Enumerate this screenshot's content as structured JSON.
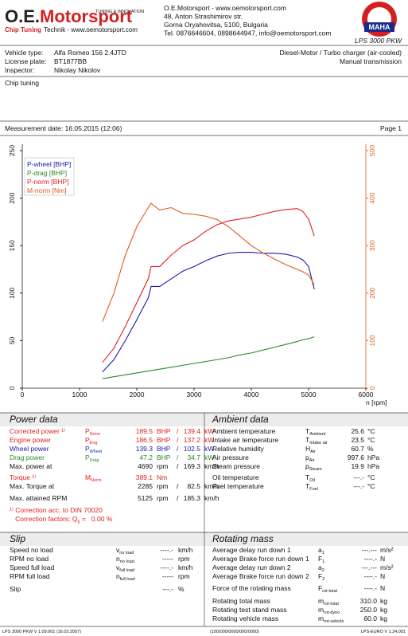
{
  "header": {
    "logo_a": "O.E.",
    "logo_b": "Motorsport",
    "logo_tag": "TUNING & INNOVATION",
    "logo_sub_bold": "Chip Tuning",
    "logo_sub": "Technik - www.oemotorsport.com",
    "address": [
      "O.E.Motorsport - www.oemotorsport.com",
      "48, Anton Strashimirov str.",
      "Gorna Oryahovitsa, 5100, Bulgaria",
      "Tel. 0876646604, 0898644947, info@oemotorsport.com"
    ],
    "badge": "MAHA",
    "product": "LPS 3000 PKW"
  },
  "vehicle": {
    "rows": [
      [
        "Vehicle type:",
        "Alfa Romeo 156 2.4JTD"
      ],
      [
        "License plate:",
        "BT1877BB"
      ],
      [
        "Inspector:",
        "Nikolay Nikolov"
      ]
    ],
    "right": [
      "Diesel-Motor / Turbo charger (air-cooled)",
      "Manual transmission"
    ]
  },
  "notes": "Chip tuning",
  "measurement": "Measurement date: 16.05.2015 (12:06)",
  "page": "Page 1",
  "chart_data": {
    "type": "line",
    "xlabel": "n [rpm]",
    "xlim": [
      0,
      6000
    ],
    "xticks": [
      0,
      1000,
      2000,
      3000,
      4000,
      5000,
      6000
    ],
    "ylim": [
      0,
      250
    ],
    "yticks": [
      0,
      50,
      100,
      150,
      200,
      250
    ],
    "y2lim": [
      0,
      500
    ],
    "y2ticks": [
      0,
      100,
      200,
      300,
      400,
      500
    ],
    "y2color": "#e06020",
    "grid": false,
    "legend": "upper left",
    "x": [
      1400,
      1600,
      1800,
      2000,
      2200,
      2250,
      2400,
      2600,
      2800,
      3000,
      3200,
      3400,
      3600,
      3800,
      4000,
      4200,
      4400,
      4600,
      4800,
      4900,
      5000,
      5100
    ],
    "series": [
      {
        "name": "P-wheel [BHP]",
        "color": "#1a1ab4",
        "values": [
          17,
          30,
          50,
          72,
          95,
          107,
          107,
          115,
          123,
          128,
          134,
          139,
          142,
          143,
          143,
          142,
          142,
          141,
          138,
          135,
          128,
          104
        ]
      },
      {
        "name": "P-drag [BHP]",
        "color": "#2a8a2a",
        "values": [
          10,
          12,
          14,
          16,
          18,
          18.5,
          20,
          22,
          24,
          26,
          28,
          30,
          32,
          35,
          37,
          40,
          43,
          46,
          49,
          51,
          52,
          54
        ]
      },
      {
        "name": "P-norm [BHP]",
        "color": "#e02020",
        "values": [
          27,
          42,
          65,
          90,
          115,
          128,
          128,
          140,
          150,
          156,
          165,
          172,
          176,
          178,
          180,
          183,
          186,
          188,
          189,
          186,
          178,
          160
        ]
      },
      {
        "name": "M-norm [Nm]",
        "color": "#e05a20",
        "axis": "y2",
        "values": [
          140,
          200,
          280,
          340,
          380,
          389,
          375,
          380,
          368,
          366,
          362,
          355,
          340,
          320,
          300,
          285,
          272,
          260,
          250,
          245,
          238,
          218
        ]
      }
    ]
  },
  "power_data": {
    "title": "Power data",
    "rows": [
      {
        "label": "Corrected power ¹⁾",
        "sym": "P",
        "sub": "Norm",
        "v1": "189.5",
        "u1": "BHP",
        "sep": "/",
        "v2": "139.4",
        "u2": "kW",
        "color": "#e02020"
      },
      {
        "label": "Engine power",
        "sym": "P",
        "sub": "Eng",
        "v1": "186.5",
        "u1": "BHP",
        "sep": "/",
        "v2": "137.2",
        "u2": "kW",
        "color": "#e02020"
      },
      {
        "label": "Wheel power",
        "sym": "P",
        "sub": "Wheel",
        "v1": "139.3",
        "u1": "BHP",
        "sep": "/",
        "v2": "102.5",
        "u2": "kW",
        "color": "#1a1ab4"
      },
      {
        "label": "Drag power",
        "sym": "P",
        "sub": "Drag",
        "v1": "47.2",
        "u1": "BHP",
        "sep": "/",
        "v2": "34.7",
        "u2": "kW",
        "color": "#2a8a2a"
      },
      {
        "label": "Max. power at",
        "v1": "4690",
        "u1": "rpm",
        "sep": "/",
        "v2": "169.3",
        "u2": "km/h"
      },
      {
        "label": "Torque ¹⁾",
        "sym": "M",
        "sub": "Norm",
        "v1": "389.1",
        "u1": "Nm",
        "color": "#e02020"
      },
      {
        "label": "Max. Torque at",
        "v1": "2285",
        "u1": "rpm",
        "sep": "/",
        "v2": "82.5",
        "u2": "km/h"
      },
      {
        "label": "Max. attained RPM",
        "v1": "5125",
        "u1": "rpm",
        "sep": "/",
        "v2": "185.3",
        "u2": "km/h"
      },
      {
        "label": "¹⁾ Correction acc. to DIN 70020",
        "color": "#e02020"
      },
      {
        "label": "   Correction factors: ",
        "sym": "Q",
        "sub": "y",
        "v1": " =   0.00 %",
        "color": "#e02020"
      }
    ]
  },
  "ambient_data": {
    "title": "Ambient data",
    "rows": [
      {
        "label": "Ambient temperature",
        "sym": "T",
        "sub": "Ambient",
        "v1": "25.6",
        "u1": "°C"
      },
      {
        "label": "Intake air temperature",
        "sym": "T",
        "sub": "Intake air",
        "v1": "23.5",
        "u1": "°C"
      },
      {
        "label": "Relative humidity",
        "sym": "H",
        "sub": "Air",
        "v1": "60.7",
        "u1": "%"
      },
      {
        "label": "Air pressure",
        "sym": "p",
        "sub": "Air",
        "v1": "997.6",
        "u1": "hPa"
      },
      {
        "label": "Steam pressure",
        "sym": "p",
        "sub": "Steam",
        "v1": "19.9",
        "u1": "hPa"
      },
      {
        "label": "Oil temperature",
        "sym": "T",
        "sub": "Oil",
        "v1": "---.-",
        "u1": "°C"
      },
      {
        "label": "Fuel temperature",
        "sym": "T",
        "sub": "Fuel",
        "v1": "---.-",
        "u1": "°C"
      }
    ]
  },
  "slip": {
    "title": "Slip",
    "rows": [
      {
        "label": "Speed no load",
        "sym": "v",
        "sub": "no load",
        "v1": "----.-",
        "u1": "km/h"
      },
      {
        "label": "RPM no load",
        "sym": "n",
        "sub": "no load",
        "v1": "-----",
        "u1": "rpm"
      },
      {
        "label": "Speed full load",
        "sym": "v",
        "sub": "full load",
        "v1": "----.-",
        "u1": "km/h"
      },
      {
        "label": "RPM full load",
        "sym": "n",
        "sub": "full load",
        "v1": "-----",
        "u1": "rpm"
      },
      {
        "label": "Slip",
        "v1": "---.-",
        "u1": "%"
      }
    ]
  },
  "rotating_mass": {
    "title": "Rotating mass",
    "rows": [
      {
        "label": "Average delay run down 1",
        "sym": "a",
        "sub": "1",
        "v1": "---.---",
        "u1": "m/s²"
      },
      {
        "label": "Average Brake force run down 1",
        "sym": "F",
        "sub": "1",
        "v1": "----.-",
        "u1": "N"
      },
      {
        "label": "Average delay run down 2",
        "sym": "a",
        "sub": "2",
        "v1": "---.---",
        "u1": "m/s²"
      },
      {
        "label": "Average Brake force run down 2",
        "sym": "F",
        "sub": "2",
        "v1": "----.-",
        "u1": "N"
      },
      {
        "label": "Force of the rotating mass",
        "sym": "F",
        "sub": "rot-total",
        "v1": "----.-",
        "u1": "N"
      },
      {
        "label": "Rotating total mass",
        "sym": "m",
        "sub": "rot-total",
        "v1": "310.0",
        "u1": "kg"
      },
      {
        "label": "Rotating test stand mass",
        "sym": "m",
        "sub": "rot-dyno",
        "v1": "250.0",
        "u1": "kg"
      },
      {
        "label": "Rotating vehicle mass",
        "sym": "m",
        "sub": "rot-vehicle",
        "v1": "60.0",
        "u1": "kg"
      }
    ]
  },
  "footer": {
    "left": "LPS 3000 PKW V 1.09.001 (16.02.2007)",
    "center": "(100/000/0000/000/0000)",
    "right": "LPS-EURO V 1.24.001"
  }
}
